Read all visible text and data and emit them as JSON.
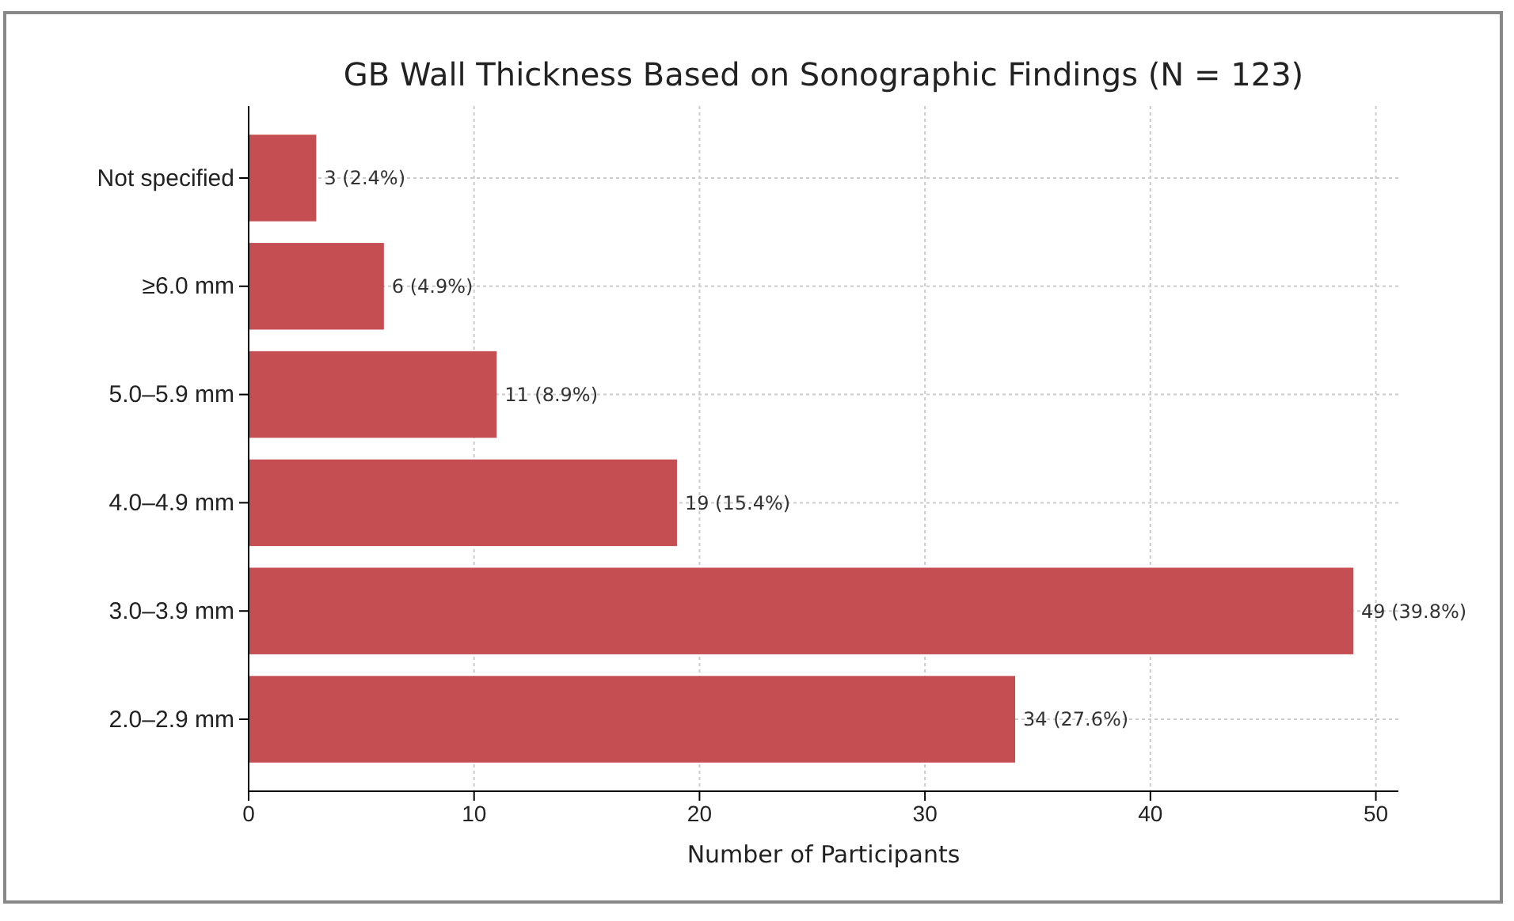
{
  "chart_data": {
    "type": "bar",
    "orientation": "horizontal",
    "title": "GB Wall Thickness Based on Sonographic Findings (N = 123)",
    "xlabel": "Number of Participants",
    "categories": [
      "Not specified",
      "≥6.0 mm",
      "5.0–5.9 mm",
      "4.0–4.9 mm",
      "3.0–3.9 mm",
      "2.0–2.9 mm"
    ],
    "values": [
      3,
      6,
      11,
      19,
      49,
      34
    ],
    "value_labels": [
      "3 (2.4%)",
      "6 (4.9%)",
      "11 (8.9%)",
      "19 (15.4%)",
      "49 (39.8%)",
      "34 (27.6%)"
    ],
    "color": "#c44e52",
    "xlim": [
      0,
      51
    ],
    "xticks": [
      0,
      10,
      20,
      30,
      40,
      50
    ],
    "grid": true
  }
}
